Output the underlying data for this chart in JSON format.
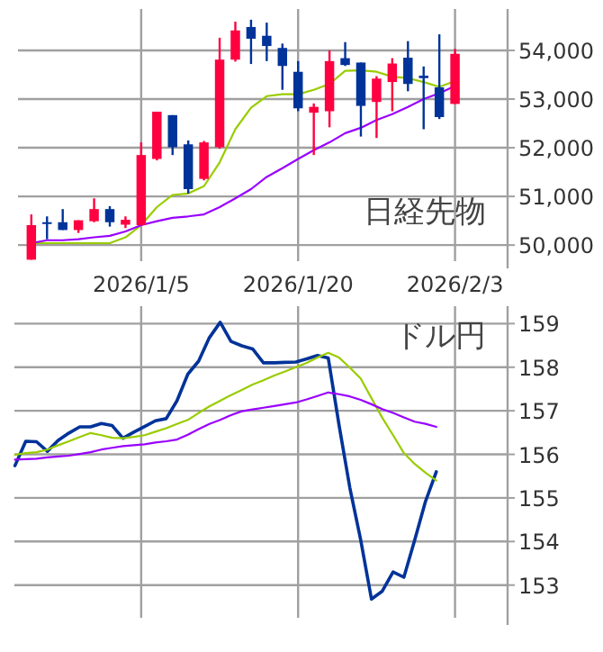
{
  "chart_data": [
    {
      "type": "candlestick",
      "title": "日経先物",
      "categories": [
        null,
        null,
        null,
        null,
        null,
        null,
        null,
        "2026/1/5",
        null,
        null,
        null,
        null,
        null,
        null,
        null,
        null,
        null,
        "2026/1/20",
        null,
        null,
        null,
        null,
        null,
        null,
        null,
        null,
        null,
        "2026/2/3"
      ],
      "ohlc": [
        [
          49700,
          50630,
          49700,
          50410
        ],
        [
          50470,
          50590,
          50120,
          50450
        ],
        [
          50470,
          50740,
          50310,
          50310
        ],
        [
          50310,
          50510,
          50250,
          50510
        ],
        [
          50490,
          50960,
          50470,
          50740
        ],
        [
          50740,
          50800,
          50380,
          50470
        ],
        [
          50420,
          50590,
          50350,
          50520
        ],
        [
          50410,
          52110,
          50400,
          51850
        ],
        [
          51770,
          52740,
          51740,
          52740
        ],
        [
          52670,
          52670,
          51850,
          52010
        ],
        [
          52070,
          52150,
          51060,
          51150
        ],
        [
          51360,
          52140,
          51330,
          52110
        ],
        [
          52010,
          54260,
          51980,
          53810
        ],
        [
          53810,
          54590,
          53770,
          54410
        ],
        [
          54480,
          54630,
          53720,
          54240
        ],
        [
          54300,
          54570,
          53780,
          54090
        ],
        [
          54050,
          54140,
          53190,
          53680
        ],
        [
          53560,
          53780,
          52750,
          52810
        ],
        [
          52720,
          52910,
          51850,
          52840
        ],
        [
          52750,
          54000,
          52420,
          53780
        ],
        [
          53840,
          54170,
          53680,
          53700
        ],
        [
          53750,
          53750,
          52230,
          52860
        ],
        [
          52940,
          53470,
          52200,
          53420
        ],
        [
          53350,
          53840,
          52750,
          53730
        ],
        [
          53850,
          54190,
          53160,
          53310
        ],
        [
          53480,
          53670,
          52380,
          53430
        ],
        [
          53240,
          54330,
          52590,
          52630
        ],
        [
          52900,
          54030,
          52900,
          53930
        ]
      ],
      "colors": [
        "#ff0040",
        "#003399",
        "#003399",
        "#ff0040",
        "#ff0040",
        "#003399",
        "#ff0040",
        "#ff0040",
        "#ff0040",
        "#003399",
        "#003399",
        "#ff0040",
        "#ff0040",
        "#ff0040",
        "#003399",
        "#003399",
        "#003399",
        "#003399",
        "#ff0040",
        "#ff0040",
        "#003399",
        "#003399",
        "#ff0040",
        "#ff0040",
        "#003399",
        "#003399",
        "#003399",
        "#ff0040"
      ],
      "series": [
        {
          "type": "line",
          "color": "#99cc00",
          "values": [
            50040,
            50040,
            50040,
            50040,
            50040,
            50040,
            50160,
            50410,
            50780,
            51030,
            51060,
            51210,
            51700,
            52380,
            52820,
            53060,
            53100,
            53100,
            53190,
            53310,
            53580,
            53590,
            53560,
            53460,
            53430,
            53350,
            53250,
            53370
          ]
        },
        {
          "type": "line",
          "color": "#9900ff",
          "values": [
            50040,
            50100,
            50100,
            50120,
            50160,
            50190,
            50280,
            50410,
            50490,
            50560,
            50590,
            50630,
            50780,
            50960,
            51150,
            51400,
            51580,
            51770,
            51950,
            52110,
            52300,
            52410,
            52570,
            52690,
            52840,
            53000,
            53120,
            53270
          ]
        }
      ],
      "ylim": [
        49670,
        54850
      ],
      "yticks": [
        {
          "value": 50000,
          "label": "50,000"
        },
        {
          "value": 51000,
          "label": "51,000"
        },
        {
          "value": 52000,
          "label": "52,000"
        },
        {
          "value": 53000,
          "label": "53,000"
        },
        {
          "value": 54000,
          "label": "54,000"
        }
      ],
      "grid": true
    },
    {
      "type": "line",
      "title": "ドル円",
      "categories": [
        null,
        null,
        null,
        null,
        null,
        null,
        null,
        null,
        null,
        null,
        null,
        null,
        null,
        null,
        null,
        null,
        null,
        null,
        null,
        null,
        null,
        null,
        null,
        null,
        null,
        null,
        null,
        null,
        null,
        null,
        null,
        null,
        null,
        null,
        null,
        null,
        null,
        null,
        null,
        null
      ],
      "series": [
        {
          "color": "#003399",
          "values": [
            155.74,
            156.3,
            156.29,
            156.07,
            156.32,
            156.49,
            156.63,
            156.63,
            156.71,
            156.66,
            156.37,
            156.51,
            156.64,
            156.77,
            156.82,
            157.23,
            157.84,
            158.14,
            158.68,
            159.03,
            158.59,
            158.49,
            158.42,
            158.1,
            158.1,
            158.11,
            158.12,
            158.19,
            158.27,
            158.21,
            156.67,
            155.23,
            154.04,
            152.68,
            152.86,
            153.3,
            153.18,
            154.03,
            154.92,
            155.6
          ]
        },
        {
          "color": "#99cc00",
          "values": [
            155.99,
            156.03,
            156.05,
            156.11,
            156.21,
            156.3,
            156.4,
            156.49,
            156.44,
            156.38,
            156.37,
            156.4,
            156.44,
            156.52,
            156.6,
            156.7,
            156.79,
            156.95,
            157.1,
            157.23,
            157.36,
            157.48,
            157.6,
            157.7,
            157.81,
            157.9,
            158.0,
            158.1,
            158.22,
            158.33,
            158.22,
            157.99,
            157.74,
            157.29,
            156.84,
            156.44,
            156.03,
            155.78,
            155.58,
            155.4
          ]
        },
        {
          "color": "#9900ff",
          "values": [
            155.88,
            155.89,
            155.9,
            155.93,
            155.95,
            155.97,
            156.01,
            156.05,
            156.11,
            156.15,
            156.19,
            156.21,
            156.23,
            156.27,
            156.3,
            156.34,
            156.45,
            156.58,
            156.7,
            156.79,
            156.9,
            156.99,
            157.03,
            157.07,
            157.11,
            157.15,
            157.19,
            157.26,
            157.34,
            157.42,
            157.38,
            157.33,
            157.25,
            157.15,
            157.04,
            156.95,
            156.85,
            156.75,
            156.7,
            156.63
          ]
        }
      ],
      "ylim": [
        152.25,
        159.4
      ],
      "yticks": [
        153,
        154,
        155,
        156,
        157,
        158,
        159
      ],
      "tick_labels": "y",
      "grid": true
    }
  ]
}
